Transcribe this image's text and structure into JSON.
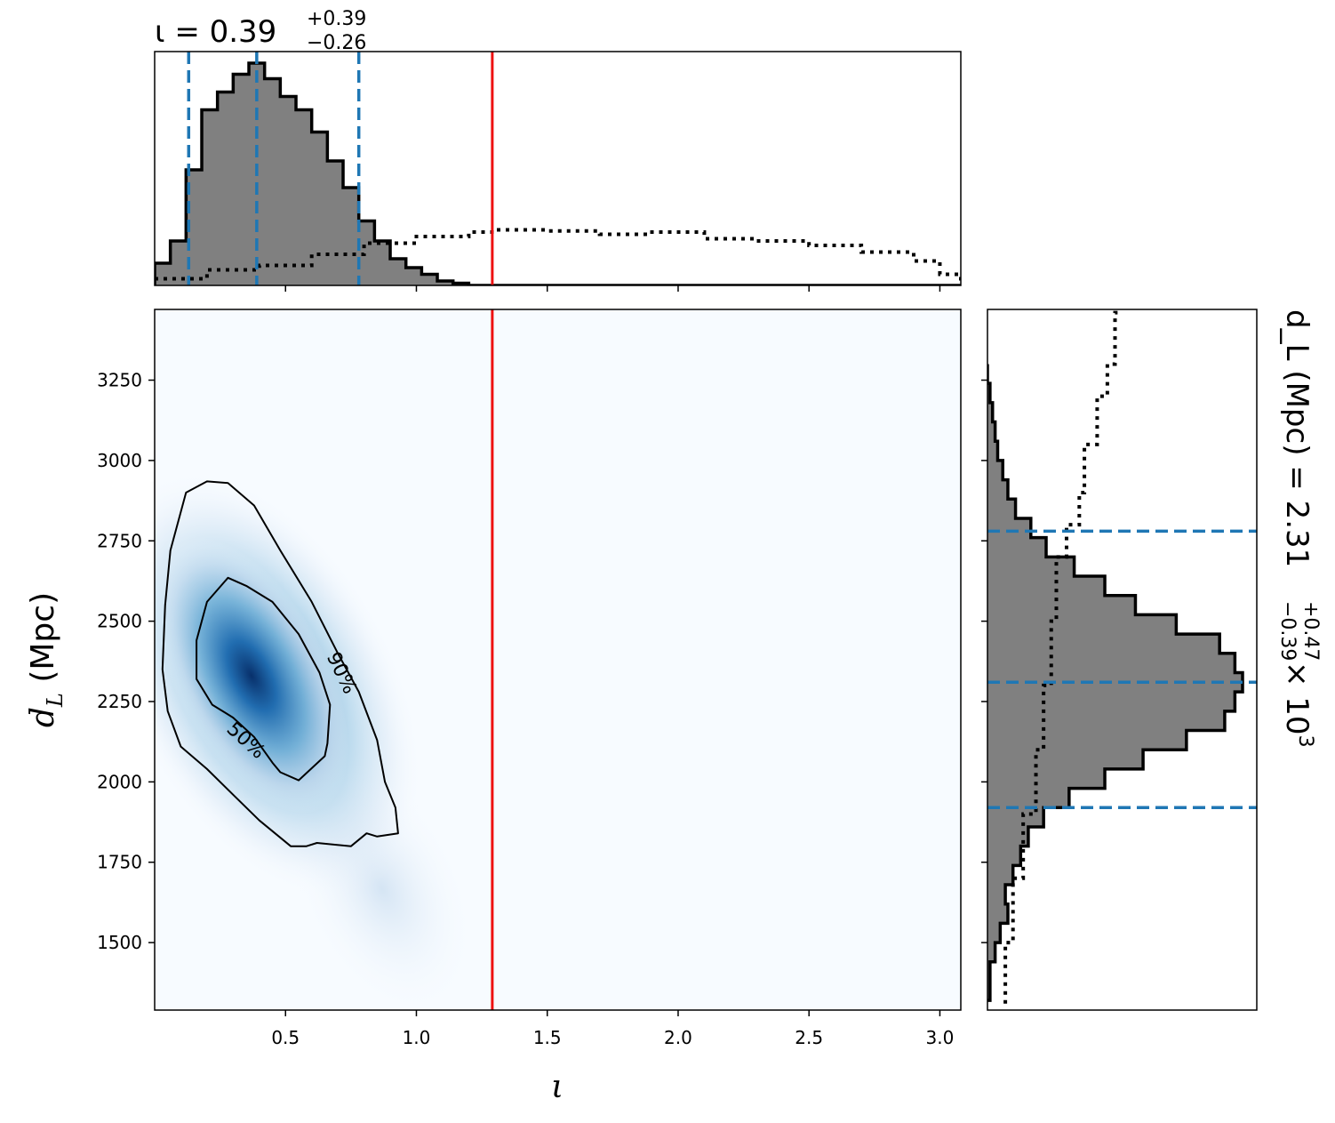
{
  "chart_data": [
    {
      "panel": "top-marginal",
      "type": "histogram",
      "title_prefix": "ι = 0.39",
      "title_upper": "+0.39",
      "title_lower": "−0.26",
      "xlim": [
        0.0,
        3.08
      ],
      "xticks": [
        0.5,
        1.0,
        1.5,
        2.0,
        2.5,
        3.0
      ],
      "bin_edges": [
        0.0,
        0.06,
        0.12,
        0.18,
        0.24,
        0.3,
        0.36,
        0.42,
        0.48,
        0.54,
        0.6,
        0.66,
        0.72,
        0.78,
        0.84,
        0.9,
        0.96,
        1.02,
        1.08,
        1.14,
        1.2
      ],
      "posterior": [
        0.1,
        0.2,
        0.52,
        0.79,
        0.87,
        0.95,
        1.0,
        0.93,
        0.85,
        0.79,
        0.69,
        0.56,
        0.44,
        0.29,
        0.2,
        0.12,
        0.08,
        0.05,
        0.02,
        0.01
      ],
      "prior_shape": [
        [
          0.0,
          0.03
        ],
        [
          0.2,
          0.07
        ],
        [
          0.4,
          0.09
        ],
        [
          0.6,
          0.14
        ],
        [
          0.8,
          0.19
        ],
        [
          1.0,
          0.22
        ],
        [
          1.2,
          0.24
        ],
        [
          1.3,
          0.25
        ],
        [
          1.5,
          0.245
        ],
        [
          1.7,
          0.23
        ],
        [
          1.9,
          0.24
        ],
        [
          2.1,
          0.21
        ],
        [
          2.3,
          0.2
        ],
        [
          2.5,
          0.18
        ],
        [
          2.7,
          0.15
        ],
        [
          2.9,
          0.11
        ],
        [
          3.0,
          0.05
        ],
        [
          3.08,
          0.02
        ]
      ],
      "quantile_lines": [
        0.13,
        0.39,
        0.78
      ],
      "true_value": 1.29,
      "colors": {
        "hist_fill": "#808080",
        "hist_edge": "#000000",
        "quantile": "#1f77b4",
        "truth": "#ee1111"
      }
    },
    {
      "panel": "joint",
      "type": "heatmap",
      "xlabel": "ι",
      "ylabel": "d_L (Mpc)",
      "ylabel_main": "d",
      "ylabel_sub": "L",
      "ylabel_unit": " (Mpc)",
      "xlim": [
        0.0,
        3.08
      ],
      "ylim": [
        1290,
        3470
      ],
      "xticks": [
        0.5,
        1.0,
        1.5,
        2.0,
        2.5,
        3.0
      ],
      "xtick_labels": [
        "0.5",
        "1.0",
        "1.5",
        "2.0",
        "2.5",
        "3.0"
      ],
      "yticks": [
        1500,
        1750,
        2000,
        2250,
        2500,
        2750,
        3000,
        3250
      ],
      "ytick_labels": [
        "1500",
        "1750",
        "2000",
        "2250",
        "2500",
        "2750",
        "3000",
        "3250"
      ],
      "density_peak": {
        "x": 0.37,
        "y": 2340
      },
      "contours": [
        {
          "level": "50%",
          "label": "50%",
          "points": [
            [
              0.2,
              2560
            ],
            [
              0.28,
              2635
            ],
            [
              0.35,
              2610
            ],
            [
              0.45,
              2560
            ],
            [
              0.55,
              2460
            ],
            [
              0.63,
              2340
            ],
            [
              0.67,
              2240
            ],
            [
              0.66,
              2120
            ],
            [
              0.65,
              2080
            ],
            [
              0.55,
              2005
            ],
            [
              0.48,
              2030
            ],
            [
              0.45,
              2060
            ],
            [
              0.38,
              2140
            ],
            [
              0.3,
              2200
            ],
            [
              0.22,
              2240
            ],
            [
              0.16,
              2320
            ],
            [
              0.16,
              2440
            ]
          ]
        },
        {
          "level": "90%",
          "label": "90%",
          "points": [
            [
              0.06,
              2720
            ],
            [
              0.12,
              2900
            ],
            [
              0.2,
              2935
            ],
            [
              0.28,
              2930
            ],
            [
              0.38,
              2860
            ],
            [
              0.48,
              2720
            ],
            [
              0.6,
              2560
            ],
            [
              0.7,
              2400
            ],
            [
              0.78,
              2280
            ],
            [
              0.85,
              2130
            ],
            [
              0.88,
              2000
            ],
            [
              0.92,
              1920
            ],
            [
              0.93,
              1840
            ],
            [
              0.85,
              1830
            ],
            [
              0.81,
              1840
            ],
            [
              0.75,
              1800
            ],
            [
              0.62,
              1810
            ],
            [
              0.58,
              1800
            ],
            [
              0.52,
              1800
            ],
            [
              0.4,
              1880
            ],
            [
              0.3,
              1960
            ],
            [
              0.2,
              2040
            ],
            [
              0.1,
              2110
            ],
            [
              0.05,
              2220
            ],
            [
              0.03,
              2350
            ],
            [
              0.04,
              2550
            ]
          ]
        }
      ],
      "true_value_x": 1.29,
      "colors": {
        "cmap_low": "#f7fbff",
        "cmap_high": "#08306b",
        "contour": "#000000",
        "truth": "#ee1111"
      }
    },
    {
      "panel": "right-marginal",
      "type": "histogram",
      "title_prefix": "d_L (Mpc) = 2.31",
      "title_upper": "+0.47",
      "title_lower": "−0.39",
      "title_suffix": " × 10",
      "title_exp": "3",
      "ylim": [
        1290,
        3470
      ],
      "bin_centers": [
        1350,
        1410,
        1470,
        1530,
        1590,
        1650,
        1710,
        1770,
        1830,
        1890,
        1950,
        2010,
        2070,
        2130,
        2190,
        2250,
        2310,
        2370,
        2430,
        2490,
        2550,
        2610,
        2670,
        2730,
        2790,
        2850,
        2910,
        2970,
        3030,
        3090,
        3150,
        3210,
        3270
      ],
      "posterior": [
        0.01,
        0.01,
        0.03,
        0.05,
        0.08,
        0.07,
        0.1,
        0.13,
        0.16,
        0.22,
        0.32,
        0.46,
        0.61,
        0.78,
        0.93,
        0.97,
        1.0,
        0.97,
        0.91,
        0.74,
        0.58,
        0.46,
        0.34,
        0.23,
        0.17,
        0.11,
        0.08,
        0.06,
        0.04,
        0.03,
        0.02,
        0.01,
        0.0
      ],
      "prior_shape": [
        [
          1310,
          0.07
        ],
        [
          1500,
          0.1
        ],
        [
          1700,
          0.14
        ],
        [
          1900,
          0.19
        ],
        [
          2100,
          0.22
        ],
        [
          2300,
          0.25
        ],
        [
          2500,
          0.27
        ],
        [
          2700,
          0.31
        ],
        [
          2800,
          0.36
        ],
        [
          2900,
          0.38
        ],
        [
          3050,
          0.43
        ],
        [
          3200,
          0.47
        ],
        [
          3300,
          0.5
        ],
        [
          3460,
          0.51
        ]
      ],
      "quantile_lines": [
        1920,
        2310,
        2780
      ],
      "colors": {
        "hist_fill": "#808080",
        "hist_edge": "#000000",
        "quantile": "#1f77b4"
      }
    }
  ]
}
